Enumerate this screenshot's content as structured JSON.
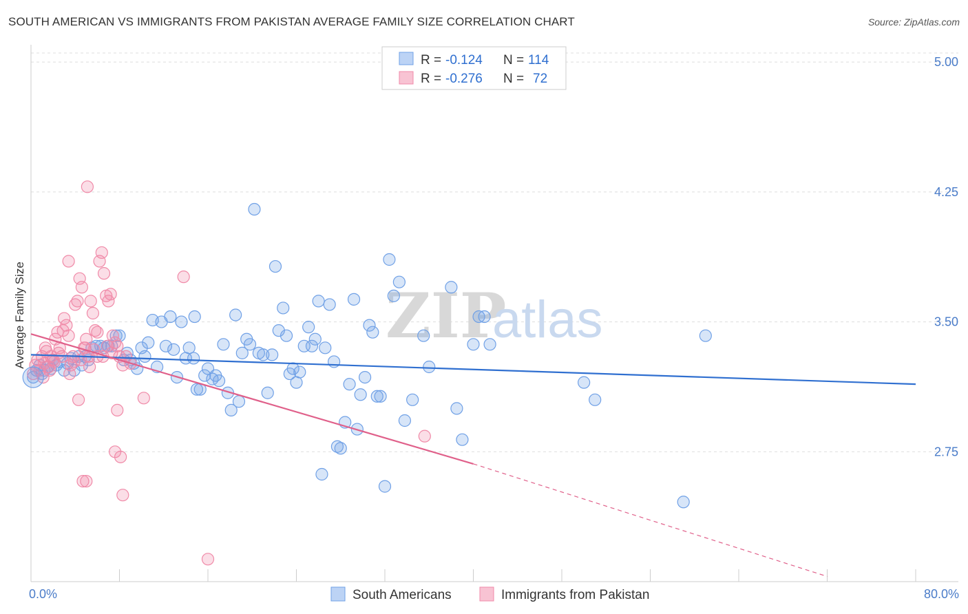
{
  "title": "SOUTH AMERICAN VS IMMIGRANTS FROM PAKISTAN AVERAGE FAMILY SIZE CORRELATION CHART",
  "source": "Source: ZipAtlas.com",
  "watermark": {
    "zip": "ZIP",
    "atlas": "atlas"
  },
  "colors": {
    "blue": "#6fa0e6",
    "blue_line": "#2f6fd0",
    "pink": "#f08aa8",
    "pink_line": "#e0608a",
    "grid": "#dddddd",
    "axis_text": "#4a7cc9"
  },
  "chart_data": {
    "type": "scatter",
    "xlabel": "",
    "ylabel": "Average Family Size",
    "xlim": [
      0,
      80
    ],
    "ylim": [
      2.0,
      5.1
    ],
    "x_tick_labels": [
      "0.0%",
      "80.0%"
    ],
    "y_ticks": [
      2.75,
      3.5,
      4.25,
      5.0
    ],
    "y_tick_labels": [
      "2.75",
      "3.50",
      "4.25",
      "5.00"
    ],
    "legend_box": [
      {
        "r_label": "R =",
        "r": "-0.124",
        "n_label": "N =",
        "n": "114",
        "series": "blue"
      },
      {
        "r_label": "R =",
        "r": "-0.276",
        "n_label": "N =",
        "n": "72",
        "series": "pink"
      }
    ],
    "series": [
      {
        "name": "South Americans",
        "color": "blue",
        "trend": {
          "x0": 0,
          "y0": 3.31,
          "x1": 80,
          "y1": 3.14
        },
        "points": [
          [
            0.2,
            3.18
          ],
          [
            0.5,
            3.22
          ],
          [
            0.8,
            3.25
          ],
          [
            1.0,
            3.2
          ],
          [
            1.2,
            3.22
          ],
          [
            1.5,
            3.24
          ],
          [
            1.8,
            3.23
          ],
          [
            2.0,
            3.28
          ],
          [
            2.3,
            3.25
          ],
          [
            2.6,
            3.27
          ],
          [
            3.0,
            3.22
          ],
          [
            3.3,
            3.26
          ],
          [
            3.6,
            3.29
          ],
          [
            3.9,
            3.22
          ],
          [
            4.3,
            3.3
          ],
          [
            4.6,
            3.25
          ],
          [
            4.9,
            3.3
          ],
          [
            5.2,
            3.28
          ],
          [
            5.5,
            3.35
          ],
          [
            5.9,
            3.36
          ],
          [
            6.3,
            3.36
          ],
          [
            6.6,
            3.35
          ],
          [
            7.0,
            3.36
          ],
          [
            7.3,
            3.36
          ],
          [
            7.7,
            3.42
          ],
          [
            8.0,
            3.42
          ],
          [
            8.4,
            3.28
          ],
          [
            8.7,
            3.32
          ],
          [
            9.0,
            3.28
          ],
          [
            9.3,
            3.26
          ],
          [
            9.6,
            3.23
          ],
          [
            10.0,
            3.35
          ],
          [
            10.3,
            3.3
          ],
          [
            10.6,
            3.38
          ],
          [
            11.0,
            3.51
          ],
          [
            11.4,
            3.24
          ],
          [
            11.8,
            3.5
          ],
          [
            12.2,
            3.36
          ],
          [
            12.6,
            3.53
          ],
          [
            12.9,
            3.34
          ],
          [
            13.2,
            3.18
          ],
          [
            13.6,
            3.5
          ],
          [
            14.0,
            3.29
          ],
          [
            14.3,
            3.35
          ],
          [
            14.7,
            3.29
          ],
          [
            15.0,
            3.11
          ],
          [
            15.3,
            3.11
          ],
          [
            15.7,
            3.19
          ],
          [
            16.0,
            3.23
          ],
          [
            16.4,
            3.17
          ],
          [
            16.7,
            3.19
          ],
          [
            17.0,
            3.16
          ],
          [
            17.4,
            3.37
          ],
          [
            17.8,
            3.09
          ],
          [
            18.1,
            2.99
          ],
          [
            18.5,
            3.54
          ],
          [
            18.8,
            3.04
          ],
          [
            19.1,
            3.32
          ],
          [
            19.5,
            3.4
          ],
          [
            19.8,
            3.37
          ],
          [
            20.2,
            4.15
          ],
          [
            20.6,
            3.32
          ],
          [
            21.0,
            3.31
          ],
          [
            21.4,
            3.09
          ],
          [
            21.8,
            3.31
          ],
          [
            22.1,
            3.82
          ],
          [
            22.4,
            3.45
          ],
          [
            22.8,
            3.58
          ],
          [
            23.1,
            3.42
          ],
          [
            23.4,
            3.2
          ],
          [
            23.7,
            3.23
          ],
          [
            24.0,
            3.15
          ],
          [
            24.3,
            3.21
          ],
          [
            24.7,
            3.36
          ],
          [
            25.1,
            3.47
          ],
          [
            25.4,
            3.36
          ],
          [
            25.7,
            3.4
          ],
          [
            26.0,
            3.62
          ],
          [
            26.3,
            2.62
          ],
          [
            26.6,
            3.35
          ],
          [
            27.0,
            3.6
          ],
          [
            27.4,
            3.27
          ],
          [
            27.7,
            2.78
          ],
          [
            28.0,
            2.77
          ],
          [
            28.4,
            2.92
          ],
          [
            28.8,
            3.14
          ],
          [
            29.2,
            3.63
          ],
          [
            29.5,
            2.88
          ],
          [
            29.8,
            3.08
          ],
          [
            30.2,
            3.18
          ],
          [
            30.6,
            3.48
          ],
          [
            30.9,
            3.44
          ],
          [
            31.3,
            3.07
          ],
          [
            31.6,
            3.07
          ],
          [
            32.0,
            2.55
          ],
          [
            32.4,
            3.86
          ],
          [
            32.8,
            3.65
          ],
          [
            33.3,
            3.73
          ],
          [
            33.8,
            2.93
          ],
          [
            34.5,
            3.05
          ],
          [
            35.5,
            3.42
          ],
          [
            36.0,
            3.24
          ],
          [
            38.0,
            3.7
          ],
          [
            38.5,
            3.0
          ],
          [
            39.0,
            2.82
          ],
          [
            40.0,
            3.37
          ],
          [
            40.5,
            3.53
          ],
          [
            41.0,
            3.53
          ],
          [
            41.5,
            3.37
          ],
          [
            50.0,
            3.15
          ],
          [
            51.0,
            3.05
          ],
          [
            59.0,
            2.46
          ],
          [
            61.0,
            3.42
          ],
          [
            14.8,
            3.53
          ]
        ]
      },
      {
        "name": "Immigrants from Pakistan",
        "color": "pink",
        "trend": {
          "x0": 0,
          "y0": 3.43,
          "x1": 40,
          "y1": 2.68,
          "dash_x1": 72,
          "dash_y1": 2.03
        },
        "points": [
          [
            0.2,
            3.2
          ],
          [
            0.4,
            3.25
          ],
          [
            0.6,
            3.28
          ],
          [
            0.8,
            3.22
          ],
          [
            1.0,
            3.3
          ],
          [
            1.2,
            3.26
          ],
          [
            1.4,
            3.33
          ],
          [
            1.6,
            3.24
          ],
          [
            1.8,
            3.3
          ],
          [
            2.0,
            3.28
          ],
          [
            2.2,
            3.4
          ],
          [
            2.4,
            3.44
          ],
          [
            2.6,
            3.35
          ],
          [
            2.8,
            3.3
          ],
          [
            3.0,
            3.52
          ],
          [
            3.2,
            3.48
          ],
          [
            3.4,
            3.42
          ],
          [
            3.6,
            3.25
          ],
          [
            3.8,
            3.3
          ],
          [
            4.0,
            3.6
          ],
          [
            4.2,
            3.62
          ],
          [
            4.4,
            3.75
          ],
          [
            4.6,
            3.7
          ],
          [
            4.8,
            3.35
          ],
          [
            5.0,
            3.4
          ],
          [
            5.2,
            3.3
          ],
          [
            5.4,
            3.62
          ],
          [
            5.6,
            3.55
          ],
          [
            5.8,
            3.45
          ],
          [
            6.0,
            3.3
          ],
          [
            6.2,
            3.85
          ],
          [
            6.4,
            3.9
          ],
          [
            6.6,
            3.78
          ],
          [
            6.8,
            3.65
          ],
          [
            7.0,
            3.62
          ],
          [
            7.2,
            3.66
          ],
          [
            7.4,
            3.42
          ],
          [
            7.6,
            3.38
          ],
          [
            7.8,
            3.36
          ],
          [
            8.0,
            3.3
          ],
          [
            8.3,
            3.25
          ],
          [
            8.6,
            3.3
          ],
          [
            5.1,
            4.28
          ],
          [
            5.0,
            2.58
          ],
          [
            4.7,
            2.58
          ],
          [
            7.6,
            2.75
          ],
          [
            8.1,
            2.72
          ],
          [
            7.8,
            2.99
          ],
          [
            8.3,
            2.5
          ],
          [
            6.5,
            3.3
          ],
          [
            3.4,
            3.85
          ],
          [
            4.3,
            3.05
          ],
          [
            10.2,
            3.06
          ],
          [
            13.8,
            3.76
          ],
          [
            16.0,
            2.13
          ],
          [
            35.6,
            2.84
          ],
          [
            1.3,
            3.35
          ],
          [
            2.1,
            3.27
          ],
          [
            3.9,
            3.27
          ],
          [
            4.9,
            3.35
          ],
          [
            6.0,
            3.44
          ],
          [
            7.3,
            3.32
          ],
          [
            9.0,
            3.26
          ],
          [
            1.7,
            3.22
          ],
          [
            2.9,
            3.45
          ],
          [
            3.5,
            3.2
          ],
          [
            5.7,
            3.34
          ],
          [
            6.9,
            3.36
          ],
          [
            1.1,
            3.18
          ],
          [
            2.5,
            3.32
          ],
          [
            4.5,
            3.28
          ],
          [
            5.3,
            3.24
          ]
        ]
      }
    ]
  }
}
